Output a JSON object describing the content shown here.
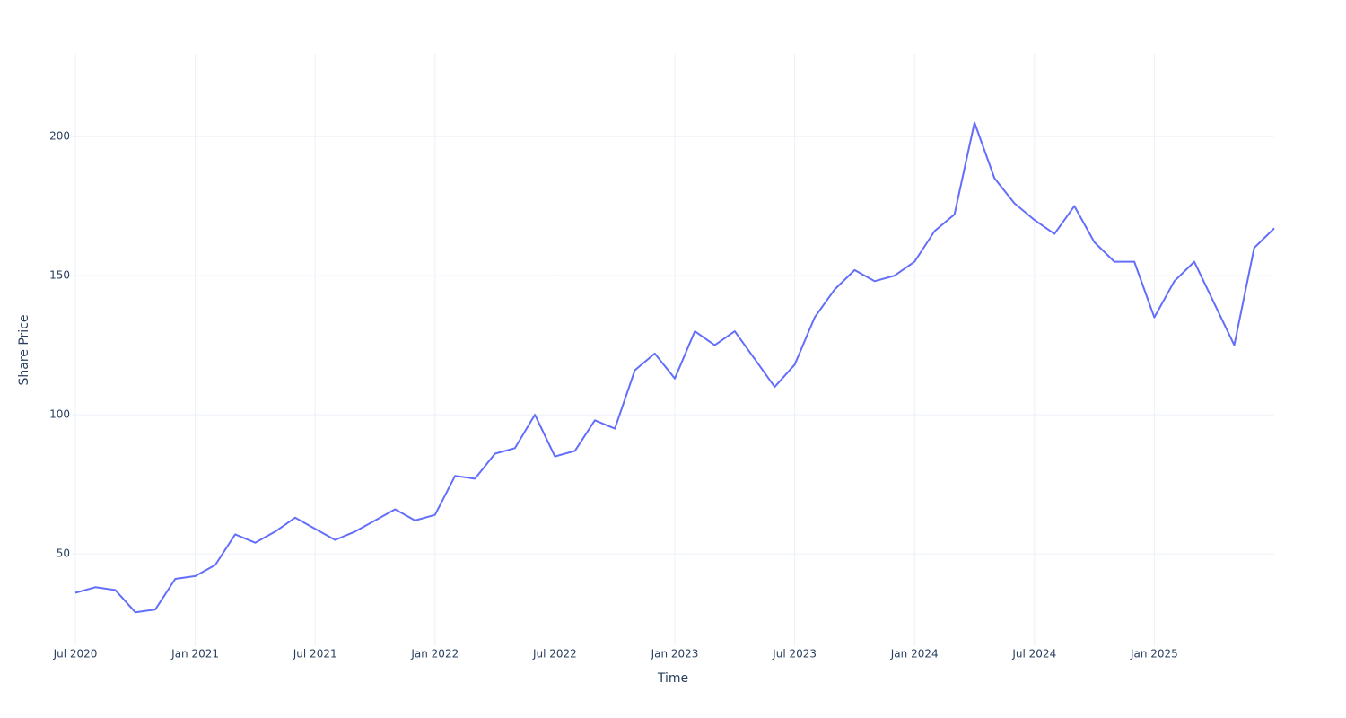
{
  "chart_data": {
    "type": "line",
    "x_label": "Time",
    "y_label": "Share Price",
    "x": [
      "2020-07",
      "2020-08",
      "2020-09",
      "2020-10",
      "2020-11",
      "2020-12",
      "2021-01",
      "2021-02",
      "2021-03",
      "2021-04",
      "2021-05",
      "2021-06",
      "2021-07",
      "2021-08",
      "2021-09",
      "2021-10",
      "2021-11",
      "2021-12",
      "2022-01",
      "2022-02",
      "2022-03",
      "2022-04",
      "2022-05",
      "2022-06",
      "2022-07",
      "2022-08",
      "2022-09",
      "2022-10",
      "2022-11",
      "2022-12",
      "2023-01",
      "2023-02",
      "2023-03",
      "2023-04",
      "2023-05",
      "2023-06",
      "2023-07",
      "2023-08",
      "2023-09",
      "2023-10",
      "2023-11",
      "2023-12",
      "2024-01",
      "2024-02",
      "2024-03",
      "2024-04",
      "2024-05",
      "2024-06",
      "2024-07",
      "2024-08",
      "2024-09",
      "2024-10",
      "2024-11",
      "2024-12",
      "2025-01",
      "2025-02",
      "2025-03",
      "2025-04",
      "2025-05",
      "2025-06",
      "2025-07"
    ],
    "series": [
      {
        "name": "Share Price",
        "color": "#636efa",
        "values": [
          36,
          38,
          37,
          29,
          30,
          41,
          42,
          46,
          57,
          54,
          58,
          63,
          59,
          55,
          58,
          62,
          66,
          62,
          64,
          78,
          77,
          86,
          88,
          100,
          85,
          87,
          98,
          95,
          116,
          122,
          113,
          130,
          125,
          130,
          120,
          110,
          118,
          135,
          145,
          152,
          148,
          150,
          155,
          166,
          172,
          205,
          185,
          176,
          170,
          165,
          175,
          162,
          155,
          155,
          135,
          148,
          155,
          140,
          125,
          160,
          167
        ]
      }
    ],
    "xlim": [
      "2020-07",
      "2025-07"
    ],
    "xticks": [
      {
        "value": "2020-07",
        "label": "Jul 2020"
      },
      {
        "value": "2021-01",
        "label": "Jan 2021"
      },
      {
        "value": "2021-07",
        "label": "Jul 2021"
      },
      {
        "value": "2022-01",
        "label": "Jan 2022"
      },
      {
        "value": "2022-07",
        "label": "Jul 2022"
      },
      {
        "value": "2023-01",
        "label": "Jan 2023"
      },
      {
        "value": "2023-07",
        "label": "Jul 2023"
      },
      {
        "value": "2024-01",
        "label": "Jan 2024"
      },
      {
        "value": "2024-07",
        "label": "Jul 2024"
      },
      {
        "value": "2025-01",
        "label": "Jan 2025"
      }
    ],
    "ylim": [
      16.8,
      229.7
    ],
    "yticks": [
      50,
      100,
      150,
      200
    ],
    "grid": true
  }
}
